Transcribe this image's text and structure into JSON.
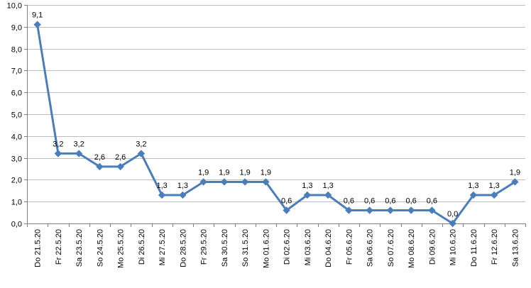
{
  "chart_data": {
    "type": "line",
    "title": "",
    "xlabel": "",
    "ylabel": "",
    "ylim": [
      0,
      10
    ],
    "y_step": 1,
    "y_tick_labels": [
      "0,0",
      "1,0",
      "2,0",
      "3,0",
      "4,0",
      "5,0",
      "6,0",
      "7,0",
      "8,0",
      "9,0",
      "10,0"
    ],
    "grid": "horizontal",
    "legend": "none",
    "categories": [
      "Do 21.5.20",
      "Fr 22.5.20",
      "Sa 23.5.20",
      "So 24.5.20",
      "Mo 25.5.20",
      "Di 26.5.20",
      "Mi 27.5.20",
      "Do 28.5.20",
      "Fr 29.5.20",
      "Sa 30.5.20",
      "So 31.5.20",
      "Mo 01.6.20",
      "Di 02.6.20",
      "Mi 03.6.20",
      "Do 04.6.20",
      "Fr 05.6.20",
      "Sa 06.6.20",
      "So 07.6.20",
      "Mo 08.6.20",
      "Di 09.6.20",
      "Mi 10.6.20",
      "Do 11.6.20",
      "Fr 12.6.20",
      "Sa 13.6.20"
    ],
    "series": [
      {
        "color": "#4a7ebb",
        "marker": "diamond",
        "values": [
          9.1,
          3.2,
          3.2,
          2.6,
          2.6,
          3.2,
          1.3,
          1.3,
          1.9,
          1.9,
          1.9,
          1.9,
          0.6,
          1.3,
          1.3,
          0.6,
          0.6,
          0.6,
          0.6,
          0.6,
          0.0,
          1.3,
          1.3,
          1.9
        ],
        "data_labels": [
          "9,1",
          "3,2",
          "3,2",
          "2,6",
          "2,6",
          "3,2",
          "1,3",
          "1,3",
          "1,9",
          "1,9",
          "1,9",
          "1,9",
          "0,6",
          "1,3",
          "1,3",
          "0,6",
          "0,6",
          "0,6",
          "0,6",
          "0,6",
          "0,0",
          "1,3",
          "1,3",
          "1,9"
        ]
      }
    ]
  }
}
